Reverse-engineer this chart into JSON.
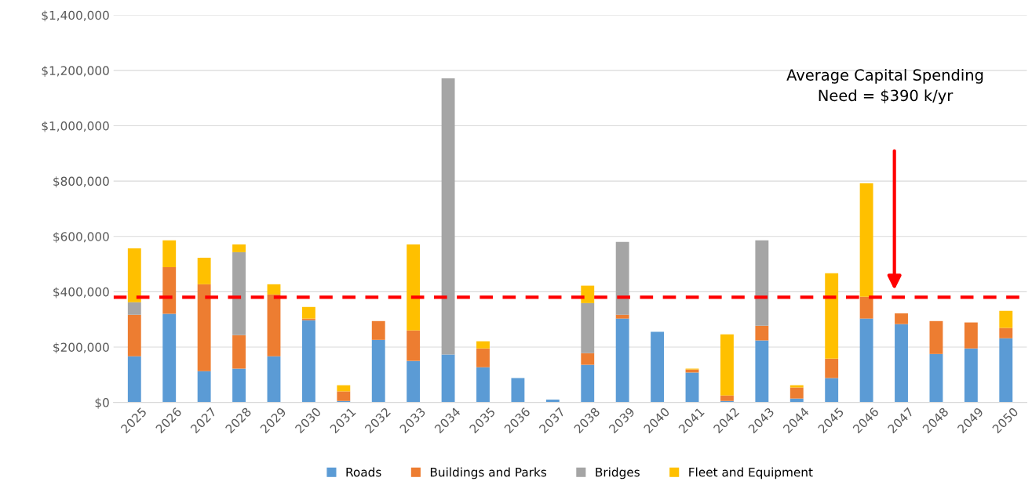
{
  "chart_data": {
    "type": "bar",
    "stacked": true,
    "categories": [
      "2025",
      "2026",
      "2027",
      "2028",
      "2029",
      "2030",
      "2031",
      "2032",
      "2033",
      "2034",
      "2035",
      "2036",
      "2037",
      "2038",
      "2039",
      "2040",
      "2041",
      "2042",
      "2043",
      "2044",
      "2045",
      "2046",
      "2047",
      "2048",
      "2049",
      "2050"
    ],
    "series": [
      {
        "name": "Roads",
        "color": "#5b9bd5",
        "values": [
          167000,
          320000,
          113000,
          122000,
          167000,
          297000,
          5000,
          226000,
          150000,
          173000,
          127000,
          88000,
          10000,
          136000,
          303000,
          255000,
          108000,
          5000,
          224000,
          14000,
          88000,
          303000,
          283000,
          175000,
          195000,
          232000
        ]
      },
      {
        "name": "Buildings and Parks",
        "color": "#ed7d31",
        "values": [
          150000,
          169000,
          314000,
          121000,
          223000,
          6000,
          35000,
          68000,
          110000,
          0,
          68000,
          0,
          0,
          42000,
          14000,
          0,
          11000,
          20000,
          53000,
          40000,
          70000,
          79000,
          39000,
          119000,
          94000,
          37000
        ]
      },
      {
        "name": "Bridges",
        "color": "#a5a5a5",
        "values": [
          45000,
          0,
          0,
          300000,
          0,
          0,
          0,
          0,
          0,
          998000,
          0,
          0,
          0,
          181000,
          263000,
          0,
          0,
          0,
          309000,
          0,
          0,
          0,
          0,
          0,
          0,
          0
        ]
      },
      {
        "name": "Fleet and Equipment",
        "color": "#ffc000",
        "values": [
          195000,
          97000,
          96000,
          28000,
          37000,
          42000,
          22000,
          0,
          311000,
          0,
          26000,
          0,
          0,
          63000,
          0,
          0,
          3000,
          221000,
          0,
          8000,
          309000,
          410000,
          0,
          0,
          0,
          62000
        ]
      }
    ],
    "ylim": [
      0,
      1400000
    ],
    "yticks": [
      {
        "value": 0,
        "label": "$0"
      },
      {
        "value": 200000,
        "label": "$200,000"
      },
      {
        "value": 400000,
        "label": "$400,000"
      },
      {
        "value": 600000,
        "label": "$600,000"
      },
      {
        "value": 800000,
        "label": "$800,000"
      },
      {
        "value": 1000000,
        "label": "$1,000,000"
      },
      {
        "value": 1200000,
        "label": "$1,200,000"
      },
      {
        "value": 1400000,
        "label": "$1,400,000"
      }
    ],
    "grid": "y",
    "legend": "bottom",
    "ref_lines": [
      {
        "axis": "y",
        "value": 380000,
        "color": "#ff0000",
        "line_style": "dashed"
      }
    ],
    "annotations": [
      "Average Capital Spending\nNeed = $390 k/yr"
    ]
  }
}
